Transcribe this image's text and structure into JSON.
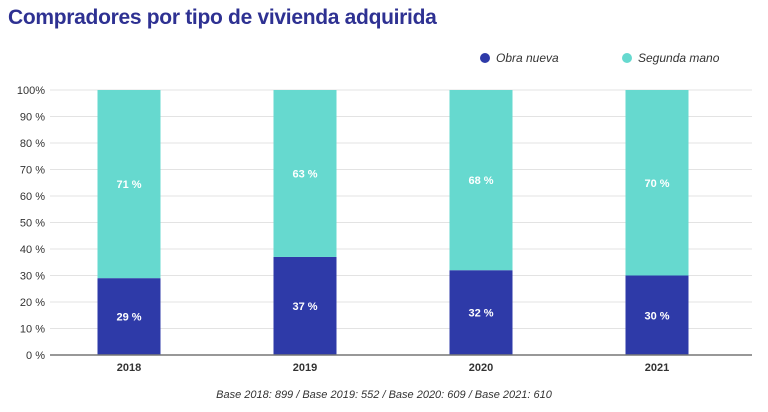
{
  "title": "Compradores por tipo de vivienda adquirida",
  "footnote": "Base 2018: 899 / Base 2019: 552 / Base 2020: 609 / Base 2021: 610",
  "colors": {
    "obra_nueva": "#2e3aa8",
    "segunda_mano": "#66d9cf",
    "title": "#2e3192",
    "grid": "#e3e3e3",
    "axis": "#777777"
  },
  "chart_data": {
    "type": "bar",
    "stacked": true,
    "categories": [
      "2018",
      "2019",
      "2020",
      "2021"
    ],
    "series": [
      {
        "name": "Obra nueva",
        "values": [
          29,
          37,
          32,
          30
        ],
        "labels": [
          "29 %",
          "37 %",
          "32 %",
          "30 %"
        ]
      },
      {
        "name": "Segunda mano",
        "values": [
          71,
          63,
          68,
          70
        ],
        "labels": [
          "71 %",
          "63 %",
          "68 %",
          "70 %"
        ]
      }
    ],
    "yticks": [
      "0 %",
      "10 %",
      "20 %",
      "30 %",
      "40 %",
      "50 %",
      "60 %",
      "70 %",
      "80 %",
      "90 %",
      "100%"
    ],
    "ylim": [
      0,
      100
    ],
    "grid": true,
    "legend_position": "top-right"
  }
}
